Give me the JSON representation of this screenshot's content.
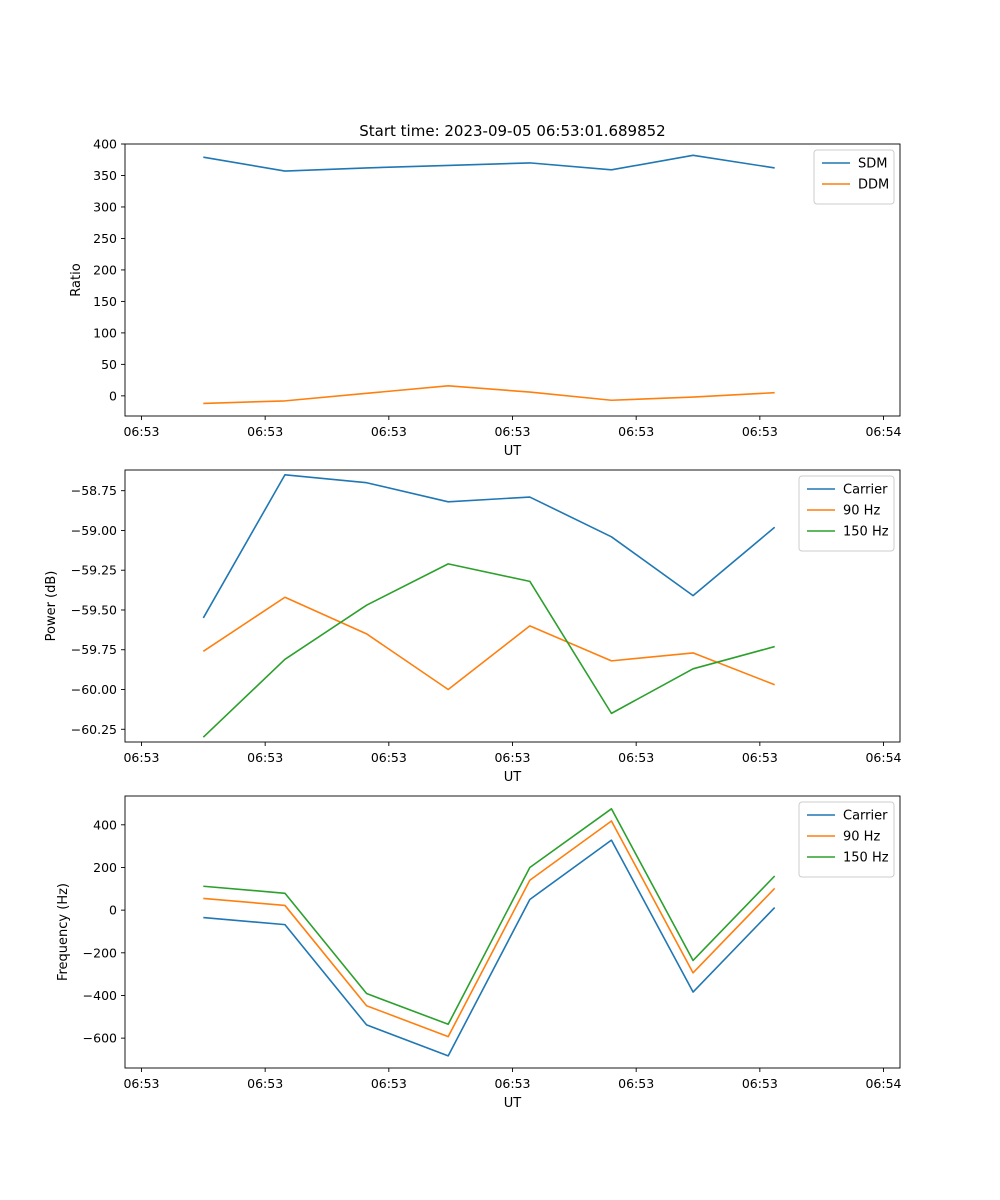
{
  "figure_title": "Start time: 2023-09-05 06:53:01.689852",
  "chart_data": [
    {
      "type": "line",
      "ylabel": "Ratio",
      "xlabel": "UT",
      "ylim": [
        -32,
        400
      ],
      "yticks": [
        0,
        50,
        100,
        150,
        200,
        250,
        300,
        350,
        400
      ],
      "ytick_labels": [
        "0",
        "50",
        "100",
        "150",
        "200",
        "250",
        "300",
        "350",
        "400"
      ],
      "xlim": [
        -0.2,
        9.2
      ],
      "xticks": [
        0,
        1.5,
        3,
        4.5,
        6,
        7.5,
        9
      ],
      "xtick_labels": [
        "06:53",
        "06:53",
        "06:53",
        "06:53",
        "06:53",
        "06:53",
        "06:54"
      ],
      "x": [
        0.75,
        1.74,
        2.73,
        3.72,
        4.71,
        5.7,
        6.69,
        7.68
      ],
      "legend_position": "top-right",
      "series": [
        {
          "name": "SDM",
          "color": "#1f77b4",
          "values": [
            379,
            357,
            362,
            366,
            370,
            359,
            382,
            362
          ]
        },
        {
          "name": "DDM",
          "color": "#ff7f0e",
          "values": [
            -12,
            -8,
            4,
            16,
            6,
            -7,
            -2,
            5
          ]
        }
      ]
    },
    {
      "type": "line",
      "ylabel": "Power (dB)",
      "xlabel": "UT",
      "ylim": [
        -60.33,
        -58.62
      ],
      "yticks": [
        -60.25,
        -60.0,
        -59.75,
        -59.5,
        -59.25,
        -59.0,
        -58.75
      ],
      "ytick_labels": [
        "−60.25",
        "−60.00",
        "−59.75",
        "−59.50",
        "−59.25",
        "−59.00",
        "−58.75"
      ],
      "xlim": [
        -0.2,
        9.2
      ],
      "xticks": [
        0,
        1.5,
        3,
        4.5,
        6,
        7.5,
        9
      ],
      "xtick_labels": [
        "06:53",
        "06:53",
        "06:53",
        "06:53",
        "06:53",
        "06:53",
        "06:54"
      ],
      "x": [
        0.75,
        1.74,
        2.73,
        3.72,
        4.71,
        5.7,
        6.69,
        7.68
      ],
      "legend_position": "top-right",
      "series": [
        {
          "name": "Carrier",
          "color": "#1f77b4",
          "values": [
            -59.55,
            -58.65,
            -58.7,
            -58.82,
            -58.79,
            -59.04,
            -59.41,
            -58.98
          ]
        },
        {
          "name": "90 Hz",
          "color": "#ff7f0e",
          "values": [
            -59.76,
            -59.42,
            -59.65,
            -60.0,
            -59.6,
            -59.82,
            -59.77,
            -59.97
          ]
        },
        {
          "name": "150 Hz",
          "color": "#2ca02c",
          "values": [
            -60.3,
            -59.81,
            -59.47,
            -59.21,
            -59.32,
            -60.15,
            -59.87,
            -59.73
          ]
        }
      ]
    },
    {
      "type": "line",
      "ylabel": "Frequency (Hz)",
      "xlabel": "UT",
      "ylim": [
        -740,
        535
      ],
      "yticks": [
        -600,
        -400,
        -200,
        0,
        200,
        400
      ],
      "ytick_labels": [
        "−600",
        "−400",
        "−200",
        "0",
        "200",
        "400"
      ],
      "xlim": [
        -0.2,
        9.2
      ],
      "xticks": [
        0,
        1.5,
        3,
        4.5,
        6,
        7.5,
        9
      ],
      "xtick_labels": [
        "06:53",
        "06:53",
        "06:53",
        "06:53",
        "06:53",
        "06:53",
        "06:54"
      ],
      "x": [
        0.75,
        1.74,
        2.73,
        3.72,
        4.71,
        5.7,
        6.69,
        7.68
      ],
      "legend_position": "top-right",
      "series": [
        {
          "name": "Carrier",
          "color": "#1f77b4",
          "values": [
            -35,
            -68,
            -538,
            -683,
            50,
            328,
            -384,
            12
          ]
        },
        {
          "name": "90 Hz",
          "color": "#ff7f0e",
          "values": [
            55,
            22,
            -448,
            -593,
            140,
            418,
            -294,
            102
          ]
        },
        {
          "name": "150 Hz",
          "color": "#2ca02c",
          "values": [
            112,
            79,
            -391,
            -535,
            200,
            475,
            -236,
            160
          ]
        }
      ]
    }
  ]
}
